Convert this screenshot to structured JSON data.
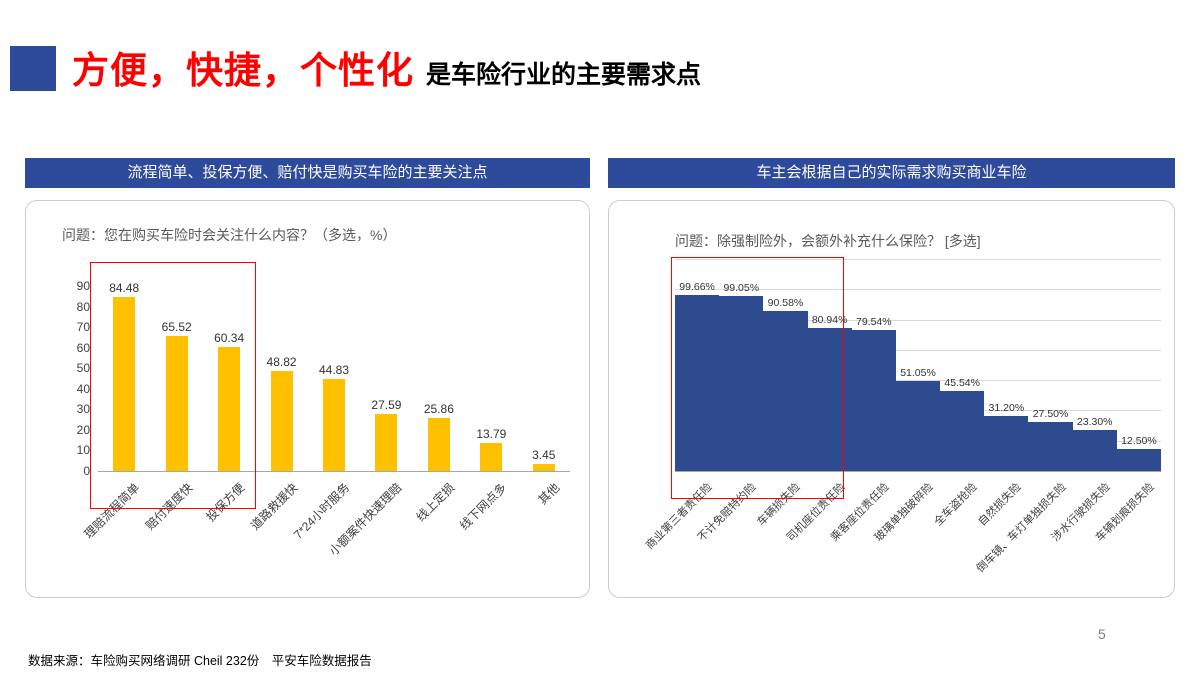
{
  "header": {
    "title_red": "方便，快捷，个性化",
    "title_black": "是车险行业的主要需求点"
  },
  "left_panel": {
    "header": "流程简单、投保方便、赔付快是购买车险的主要关注点",
    "question": "问题：您在购买车险时会关注什么内容？（多选，%）"
  },
  "right_panel": {
    "header": "车主会根据自己的实际需求购买商业车险",
    "question": "问题：除强制险外，会额外补充什么保险？ [多选]"
  },
  "footer": {
    "source": "数据来源：车险购买网络调研 Cheil 232份　平安车险数据报告",
    "page_number": "5"
  },
  "colors": {
    "accent_blue": "#2E4B9B",
    "title_red": "#FF0000",
    "bar_yellow": "#FFC000",
    "bar_blue": "#2E4B8F",
    "highlight_red": "#FF0000"
  },
  "chart_data": [
    {
      "type": "bar",
      "title": "您在购买车险时会关注什么内容？（多选，%）",
      "categories": [
        "理赔流程简单",
        "赔付速度快",
        "投保方便",
        "道路救援快",
        "7*24小时服务",
        "小额案件快速理赔",
        "线上定损",
        "线下网点多",
        "其他"
      ],
      "values": [
        84.48,
        65.52,
        60.34,
        48.82,
        44.83,
        27.59,
        25.86,
        13.79,
        3.45
      ],
      "xlabel": "",
      "ylabel": "",
      "ylim": [
        0,
        90
      ],
      "yticks": [
        0,
        10,
        20,
        30,
        40,
        50,
        60,
        70,
        80,
        90
      ],
      "grid": false,
      "legend": "none",
      "bar_color": "#FFC000",
      "value_suffix": "",
      "highlight_first_n": 3
    },
    {
      "type": "bar",
      "title": "除强制险外，会额外补充什么保险？ [多选]",
      "categories": [
        "商业第三者责任险",
        "不计免赔特约险",
        "车辆损失险",
        "司机座位责任险",
        "乘客座位责任险",
        "玻璃单独破碎险",
        "全车盗抢险",
        "自然损失险",
        "倒车镜、车灯单独损失险",
        "涉水行驶损失险",
        "车辆划痕损失险"
      ],
      "values": [
        99.66,
        99.05,
        90.58,
        80.94,
        79.54,
        51.05,
        45.54,
        31.2,
        27.5,
        23.3,
        12.5
      ],
      "xlabel": "",
      "ylabel": "",
      "ylim": [
        0,
        120
      ],
      "yticks": [],
      "grid": true,
      "legend": "none",
      "bar_color": "#2E4B8F",
      "value_suffix": "%",
      "highlight_first_n": 3
    }
  ]
}
